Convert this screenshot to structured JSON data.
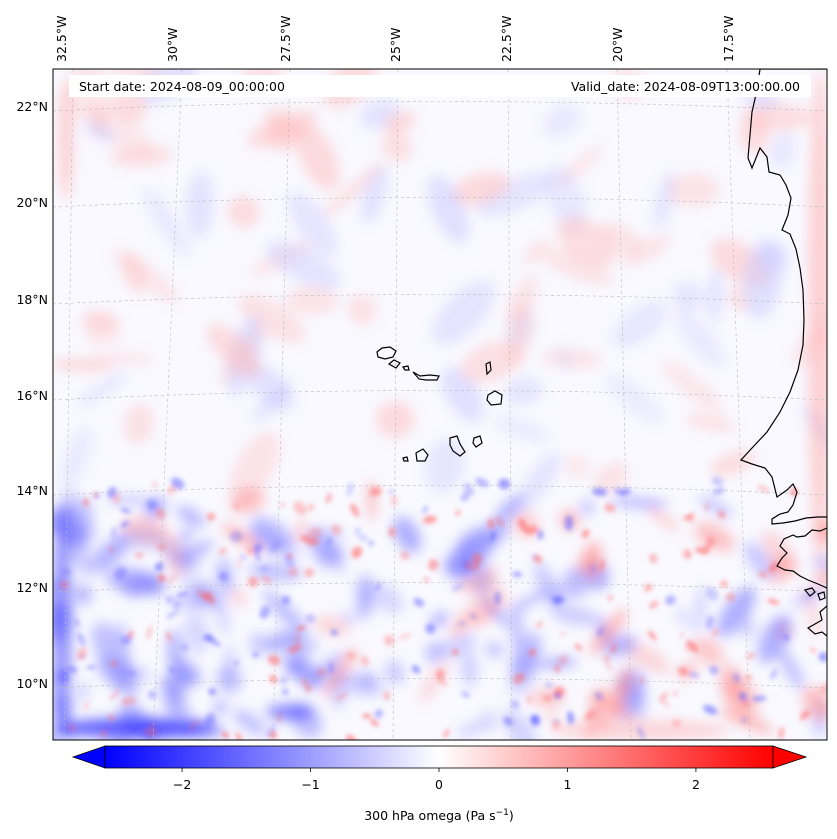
{
  "header": {
    "start_date": "Start date: 2024-08-09_00:00:00",
    "valid_date": "Valid_date: 2024-08-09T13:00:00.00"
  },
  "map": {
    "projection": "lambert-conformal",
    "longitude_labels": [
      "32.5°W",
      "30°W",
      "27.5°W",
      "25°W",
      "22.5°W",
      "20°W",
      "17.5°W"
    ],
    "latitude_labels": [
      "22°N",
      "20°N",
      "18°N",
      "16°N",
      "14°N",
      "12°N",
      "10°N"
    ],
    "gridlines": true,
    "field": "300 hPa omega",
    "coastlines": [
      "Cape Verde islands",
      "West African coast"
    ]
  },
  "colorbar": {
    "label": "300 hPa omega (Pa s",
    "label_sup": "−1",
    "label_close": ")",
    "ticks": [
      "−2",
      "−1",
      "0",
      "1",
      "2"
    ],
    "tick_values": [
      -2,
      -1,
      0,
      1,
      2
    ],
    "range": [
      -2.6,
      2.6
    ],
    "colormap": "bwr",
    "extend": "both",
    "low_color": "#0000ff",
    "mid_color": "#ffffff",
    "high_color": "#ff0000"
  }
}
